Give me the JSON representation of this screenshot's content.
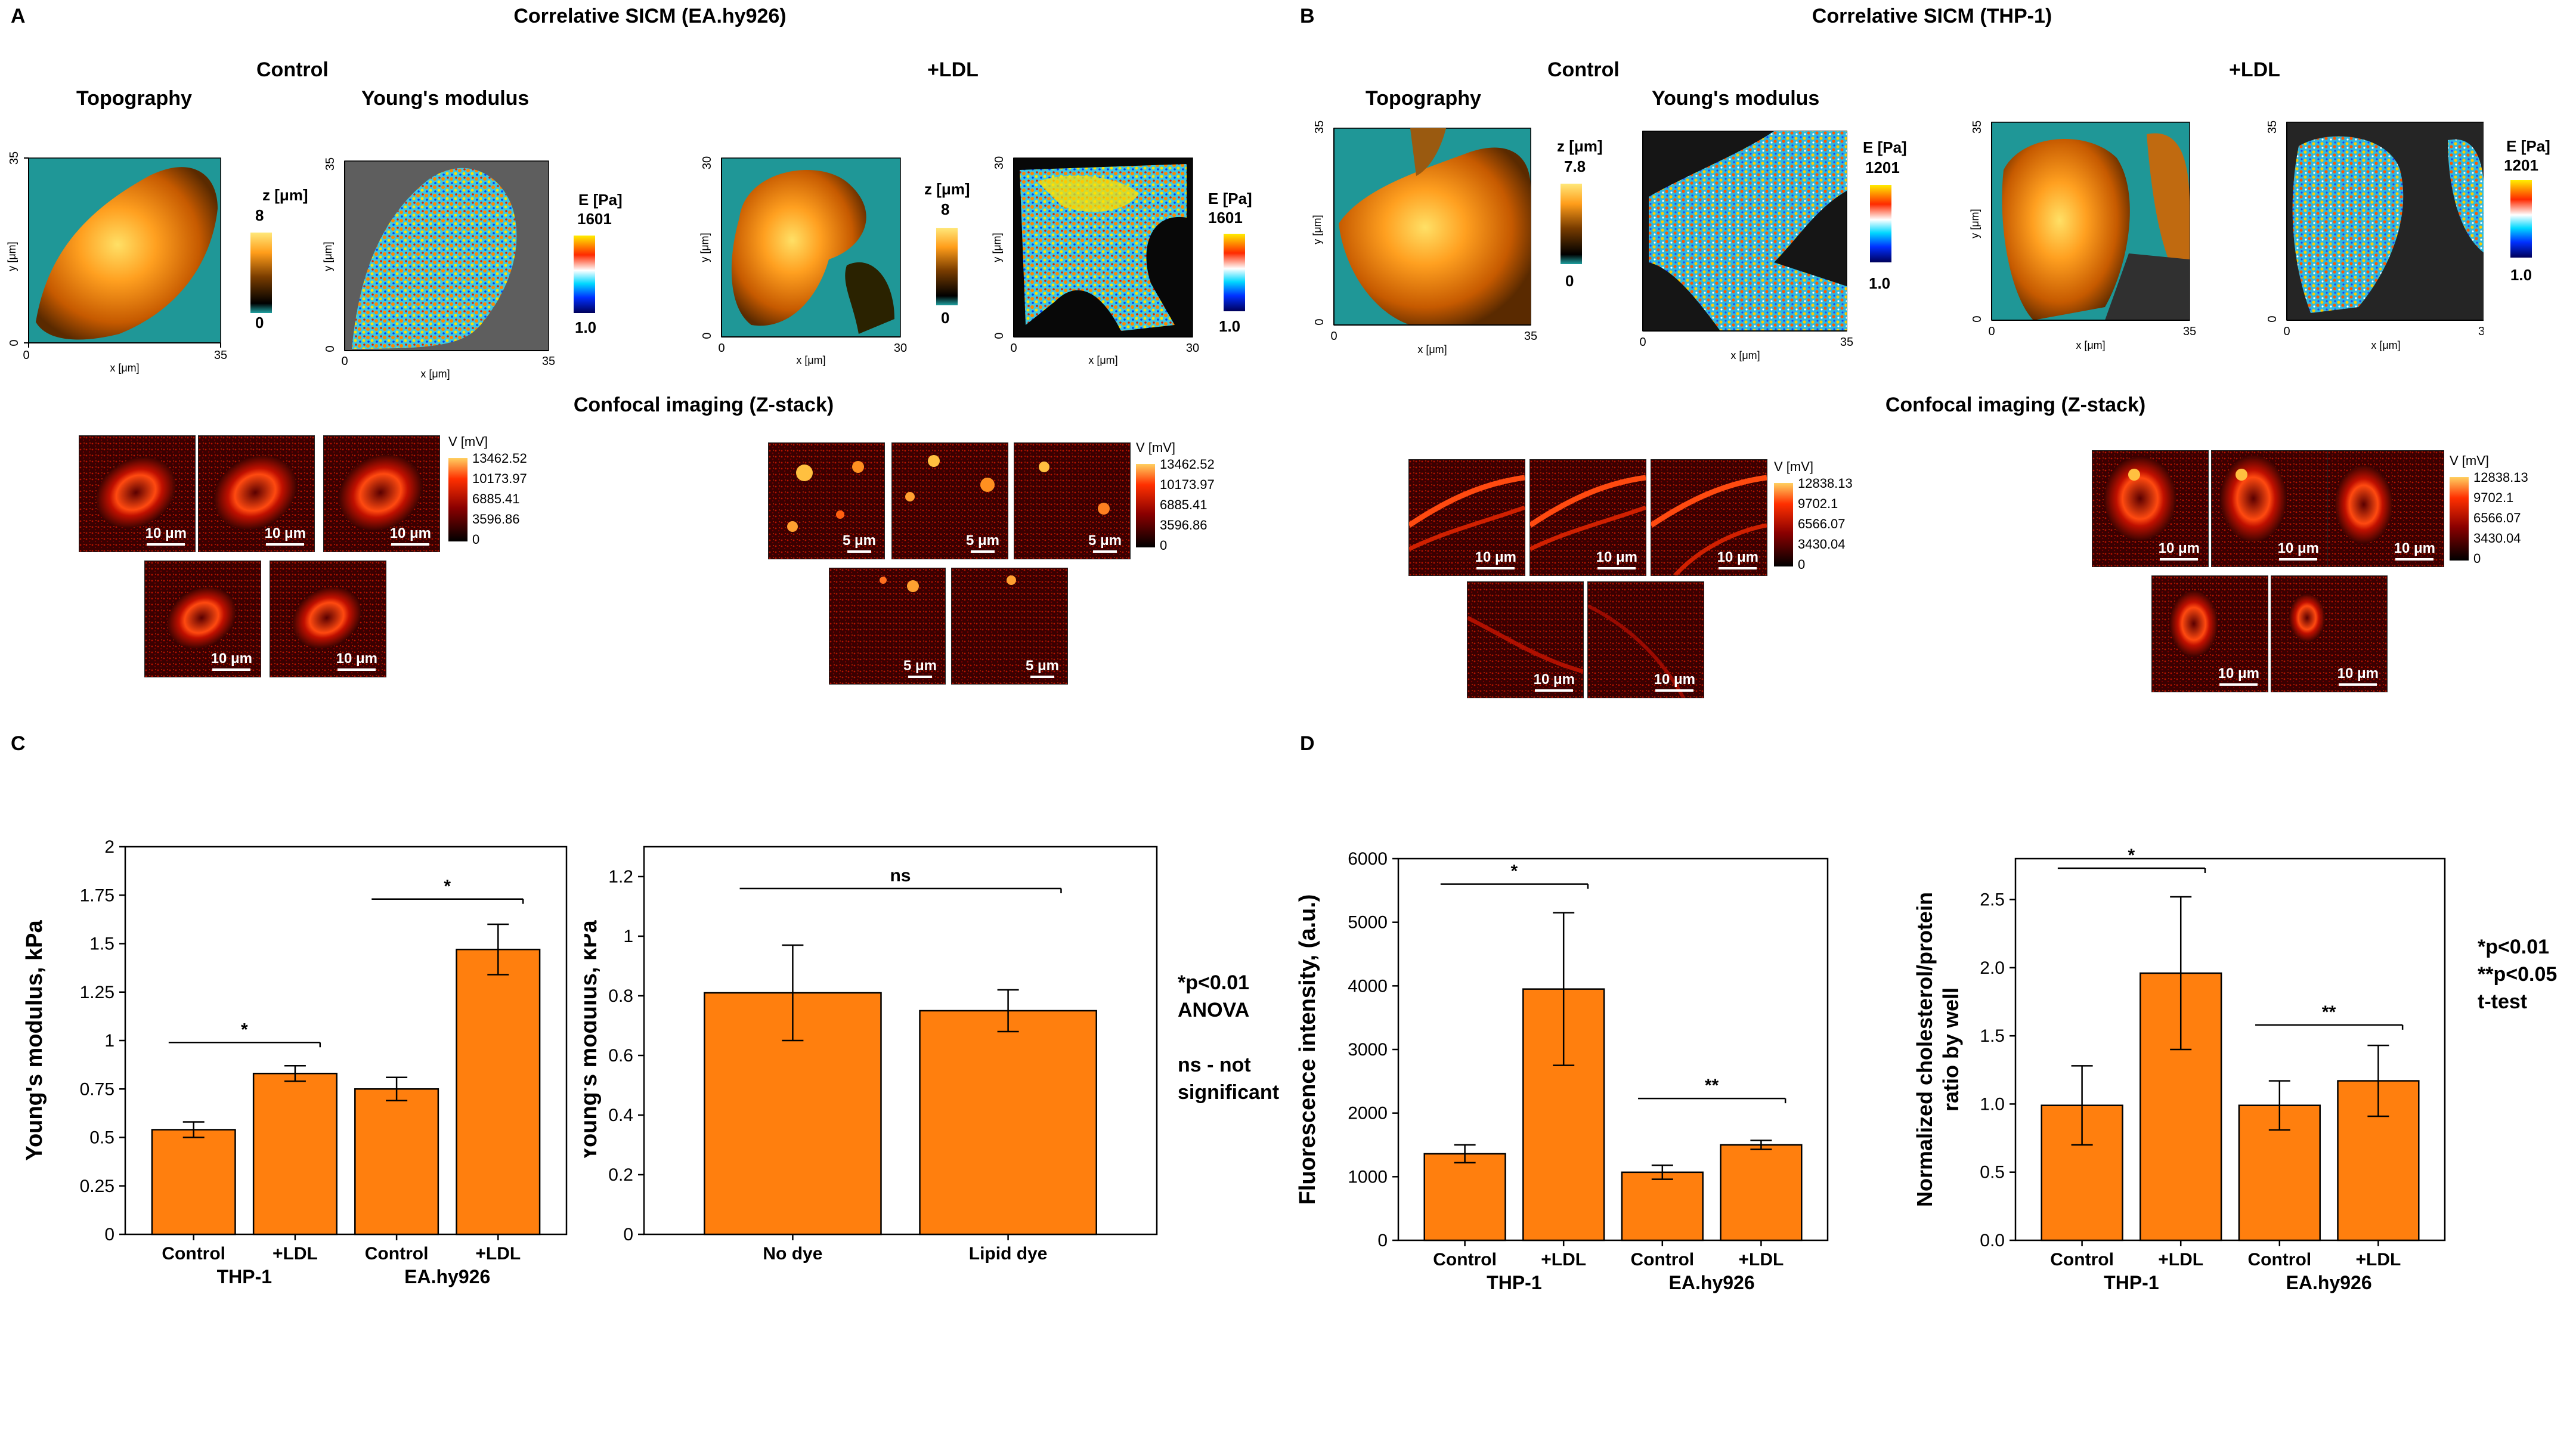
{
  "panels": {
    "A": {
      "letter": "A",
      "title": "Correlative SICM (EA.hy926)",
      "control_label": "Control",
      "ldl_label": "+LDL",
      "topography_label": "Topography",
      "youngs_label": "Young's modulus",
      "confocal_title": "Confocal imaging (Z-stack)",
      "z_unit": "z [μm]",
      "z_max": "8",
      "z_min": "0",
      "e_unit": "E [Pa]",
      "e_max": "1601",
      "e_min": "1.0",
      "x_axis": "x [μm]",
      "y_axis": "y [μm]",
      "ctrl_range": "35",
      "ldl_range": "30",
      "zero": "0",
      "v_unit": "V [mV]",
      "v_ticks": [
        "13462.52",
        "10173.97",
        "6885.41",
        "3596.86",
        "0"
      ],
      "scale_ctrl": "10 μm",
      "scale_ldl": "5 μm"
    },
    "B": {
      "letter": "B",
      "title": "Correlative SICM (THP-1)",
      "control_label": "Control",
      "ldl_label": "+LDL",
      "topography_label": "Topography",
      "youngs_label": "Young's modulus",
      "confocal_title": "Confocal imaging (Z-stack)",
      "z_unit": "z [μm]",
      "z_max": "7.8",
      "z_min": "0",
      "e_unit": "E [Pa]",
      "e_max": "1201",
      "e_min": "1.0",
      "e_unit_ldl": "E [Pa]",
      "e_max_ldl": "1201",
      "e_min_ldl": "1.0",
      "x_axis": "x [μm]",
      "y_axis": "y [μm]",
      "range": "35",
      "zero": "0",
      "v_unit": "V [mV]",
      "v_ticks": [
        "12838.13",
        "9702.1",
        "6566.07",
        "3430.04",
        "0"
      ],
      "scale": "10 μm"
    },
    "C": {
      "letter": "C",
      "notes": [
        "*p<0.01",
        "ANOVA",
        "",
        "ns - not",
        "significant"
      ]
    },
    "D": {
      "letter": "D",
      "notes": [
        "*p<0.01",
        "**p<0.05",
        "t-test"
      ]
    }
  },
  "chart_data": [
    {
      "id": "c1",
      "type": "bar",
      "ylabel": "Young's modulus, kPa",
      "ylim": [
        0,
        2
      ],
      "yticks": [
        0,
        0.25,
        0.5,
        0.75,
        1,
        1.25,
        1.5,
        1.75,
        2
      ],
      "ytick_labels": [
        "0",
        "0.25",
        "0.5",
        "0.75",
        "1",
        "1.25",
        "1.5",
        "1.75",
        "2"
      ],
      "categories": [
        "Control",
        "+LDL",
        "Control",
        "+LDL"
      ],
      "groups": [
        {
          "label": "THP-1",
          "from": 0,
          "to": 1
        },
        {
          "label": "EA.hy926",
          "from": 2,
          "to": 3
        }
      ],
      "values": [
        0.54,
        0.83,
        0.75,
        1.47
      ],
      "errors": [
        0.04,
        0.04,
        0.06,
        0.13
      ],
      "brackets": [
        {
          "from": 0,
          "to": 1,
          "y": 0.99,
          "label": "*"
        },
        {
          "from": 2,
          "to": 3,
          "y": 1.73,
          "label": "*"
        }
      ],
      "color": "#ff7f0e"
    },
    {
      "id": "c2",
      "type": "bar",
      "ylabel": "Young's modulus, kPa",
      "ylim": [
        0,
        1.3
      ],
      "yticks": [
        0,
        0.2,
        0.4,
        0.6,
        0.8,
        1,
        1.2
      ],
      "ytick_labels": [
        "0",
        "0.2",
        "0.4",
        "0.6",
        "0.8",
        "1",
        "1.2"
      ],
      "categories": [
        "No dye",
        "Lipid dye"
      ],
      "values": [
        0.81,
        0.75
      ],
      "errors": [
        0.16,
        0.07
      ],
      "brackets": [
        {
          "from": 0,
          "to": 1,
          "y": 1.16,
          "label": "ns"
        }
      ],
      "color": "#ff7f0e"
    },
    {
      "id": "d1",
      "type": "bar",
      "ylabel": "Fluorescence intensity, (a.u.)",
      "ylim": [
        0,
        6000
      ],
      "yticks": [
        0,
        1000,
        2000,
        3000,
        4000,
        5000,
        6000
      ],
      "ytick_labels": [
        "0",
        "1000",
        "2000",
        "3000",
        "4000",
        "5000",
        "6000"
      ],
      "categories": [
        "Control",
        "+LDL",
        "Control",
        "+LDL"
      ],
      "groups": [
        {
          "label": "THP-1",
          "from": 0,
          "to": 1
        },
        {
          "label": "EA.hy926",
          "from": 2,
          "to": 3
        }
      ],
      "values": [
        1360,
        3950,
        1070,
        1500
      ],
      "errors": [
        140,
        1200,
        110,
        70
      ],
      "brackets": [
        {
          "from": 0,
          "to": 1,
          "y": 5600,
          "label": "*"
        },
        {
          "from": 2,
          "to": 3,
          "y": 2230,
          "label": "**"
        }
      ],
      "color": "#ff7f0e"
    },
    {
      "id": "d2",
      "type": "bar",
      "ylabel": "Normalized cholesterol/protein ratio by well",
      "ylabel_lines": [
        "Normalized cholesterol/protein",
        "ratio by well"
      ],
      "ylim": [
        0,
        2.8
      ],
      "yticks": [
        0,
        0.5,
        1,
        1.5,
        2,
        2.5
      ],
      "ytick_labels": [
        "0.0",
        "0.5",
        "1.0",
        "1.5",
        "2.0",
        "2.5"
      ],
      "categories": [
        "Control",
        "+LDL",
        "Control",
        "+LDL"
      ],
      "groups": [
        {
          "label": "THP-1",
          "from": 0,
          "to": 1
        },
        {
          "label": "EA.hy926",
          "from": 2,
          "to": 3
        }
      ],
      "values": [
        0.99,
        1.96,
        0.99,
        1.17
      ],
      "errors": [
        0.29,
        0.56,
        0.18,
        0.26
      ],
      "brackets": [
        {
          "from": 0,
          "to": 1,
          "y": 2.73,
          "label": "*"
        },
        {
          "from": 2,
          "to": 3,
          "y": 1.58,
          "label": "**"
        }
      ],
      "color": "#ff7f0e"
    }
  ]
}
